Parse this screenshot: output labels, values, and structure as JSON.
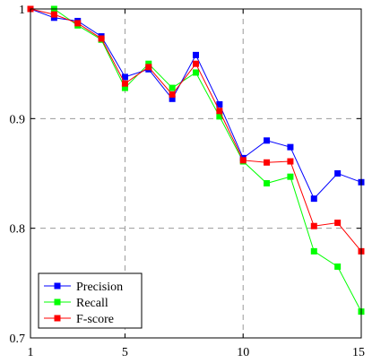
{
  "chart_data": {
    "type": "line",
    "x": [
      1,
      2,
      3,
      4,
      5,
      6,
      7,
      8,
      9,
      10,
      11,
      12,
      13,
      14,
      15
    ],
    "xlim": [
      1,
      15
    ],
    "ylim": [
      0.7,
      1.0
    ],
    "xticks": [
      1,
      5,
      10,
      15
    ],
    "yticks": [
      0.7,
      0.8,
      0.9,
      1.0
    ],
    "xtick_labels": [
      "1",
      "5",
      "10",
      "15"
    ],
    "ytick_labels": [
      "0.7",
      "0.8",
      "0.9",
      "1"
    ],
    "grid": true,
    "legend_position": "bottom-left",
    "series": [
      {
        "name": "Precision",
        "color": "#0000ff",
        "values": [
          1.0,
          0.992,
          0.989,
          0.975,
          0.938,
          0.945,
          0.918,
          0.958,
          0.913,
          0.864,
          0.88,
          0.874,
          0.827,
          0.85,
          0.842
        ]
      },
      {
        "name": "Recall",
        "color": "#00ff00",
        "values": [
          1.0,
          1.0,
          0.985,
          0.972,
          0.928,
          0.95,
          0.928,
          0.942,
          0.902,
          0.861,
          0.841,
          0.847,
          0.779,
          0.765,
          0.724
        ]
      },
      {
        "name": "F-score",
        "color": "#ff0000",
        "values": [
          1.0,
          0.995,
          0.987,
          0.973,
          0.932,
          0.947,
          0.922,
          0.95,
          0.907,
          0.862,
          0.86,
          0.861,
          0.802,
          0.805,
          0.779
        ]
      }
    ]
  }
}
